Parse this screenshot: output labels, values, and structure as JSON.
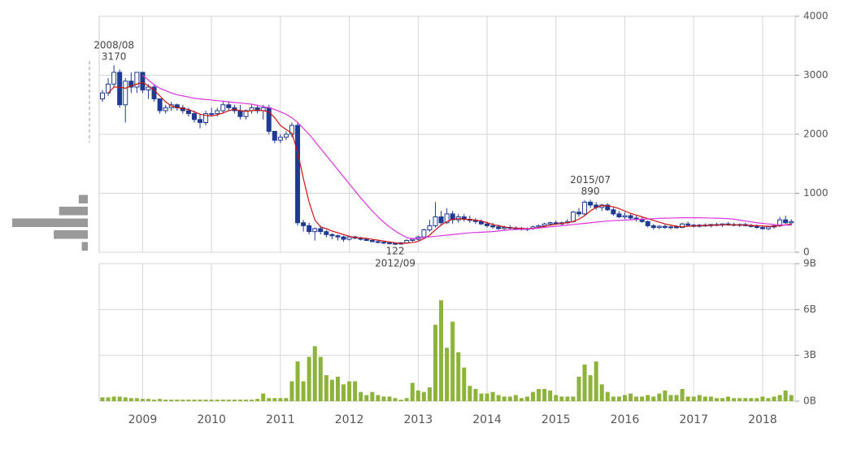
{
  "chart_data": {
    "type": "candlestick",
    "categories": [
      null,
      null,
      null,
      null,
      null,
      null,
      null,
      "2009",
      null,
      null,
      null,
      null,
      null,
      null,
      null,
      null,
      null,
      null,
      null,
      "2010",
      null,
      null,
      null,
      null,
      null,
      null,
      null,
      null,
      null,
      null,
      null,
      "2011",
      null,
      null,
      null,
      null,
      null,
      null,
      null,
      null,
      null,
      null,
      null,
      "2012",
      null,
      null,
      null,
      null,
      null,
      null,
      null,
      null,
      null,
      null,
      null,
      "2013",
      null,
      null,
      null,
      null,
      null,
      null,
      null,
      null,
      null,
      null,
      null,
      "2014",
      null,
      null,
      null,
      null,
      null,
      null,
      null,
      null,
      null,
      null,
      null,
      "2015",
      null,
      null,
      null,
      null,
      null,
      null,
      null,
      null,
      null,
      null,
      null,
      "2016",
      null,
      null,
      null,
      null,
      null,
      null,
      null,
      null,
      null,
      null,
      null,
      "2017",
      null,
      null,
      null,
      null,
      null,
      null,
      null,
      null,
      null,
      null,
      null,
      "2018",
      null,
      null,
      null,
      null,
      null
    ],
    "ohlc": [
      [
        2600,
        2750,
        2550,
        2700
      ],
      [
        2700,
        2950,
        2650,
        2850
      ],
      [
        2850,
        3170,
        2800,
        3050
      ],
      [
        3050,
        3100,
        2450,
        2500
      ],
      [
        2500,
        2950,
        2200,
        2900
      ],
      [
        2900,
        3050,
        2700,
        2800
      ],
      [
        2800,
        3050,
        2700,
        3050
      ],
      [
        3050,
        3050,
        2700,
        2750
      ],
      [
        2750,
        2850,
        2600,
        2800
      ],
      [
        2800,
        2850,
        2550,
        2600
      ],
      [
        2600,
        2600,
        2350,
        2400
      ],
      [
        2400,
        2500,
        2350,
        2450
      ],
      [
        2450,
        2550,
        2400,
        2500
      ],
      [
        2500,
        2520,
        2400,
        2450
      ],
      [
        2450,
        2500,
        2350,
        2400
      ],
      [
        2400,
        2450,
        2300,
        2350
      ],
      [
        2350,
        2400,
        2200,
        2250
      ],
      [
        2250,
        2350,
        2100,
        2200
      ],
      [
        2200,
        2400,
        2150,
        2350
      ],
      [
        2350,
        2450,
        2300,
        2350
      ],
      [
        2350,
        2450,
        2300,
        2400
      ],
      [
        2400,
        2550,
        2350,
        2500
      ],
      [
        2500,
        2550,
        2400,
        2450
      ],
      [
        2450,
        2500,
        2350,
        2400
      ],
      [
        2400,
        2500,
        2250,
        2300
      ],
      [
        2300,
        2420,
        2250,
        2400
      ],
      [
        2400,
        2500,
        2350,
        2450
      ],
      [
        2450,
        2500,
        2350,
        2400
      ],
      [
        2400,
        2500,
        2250,
        2450
      ],
      [
        2450,
        2500,
        2000,
        2050
      ],
      [
        2050,
        2050,
        1850,
        1900
      ],
      [
        1900,
        2000,
        1850,
        1950
      ],
      [
        1950,
        2050,
        1900,
        2000
      ],
      [
        2000,
        2200,
        1950,
        2150
      ],
      [
        2150,
        2200,
        450,
        500
      ],
      [
        500,
        550,
        350,
        450
      ],
      [
        450,
        500,
        300,
        350
      ],
      [
        350,
        420,
        200,
        400
      ],
      [
        400,
        450,
        300,
        350
      ],
      [
        350,
        380,
        250,
        300
      ],
      [
        300,
        320,
        220,
        280
      ],
      [
        280,
        300,
        200,
        260
      ],
      [
        260,
        280,
        180,
        220
      ],
      [
        220,
        280,
        200,
        260
      ],
      [
        260,
        280,
        220,
        240
      ],
      [
        240,
        260,
        200,
        220
      ],
      [
        220,
        240,
        190,
        200
      ],
      [
        200,
        220,
        170,
        180
      ],
      [
        180,
        200,
        150,
        170
      ],
      [
        170,
        190,
        140,
        160
      ],
      [
        160,
        180,
        130,
        150
      ],
      [
        150,
        160,
        122,
        140
      ],
      [
        140,
        170,
        130,
        160
      ],
      [
        160,
        220,
        150,
        200
      ],
      [
        200,
        240,
        180,
        220
      ],
      [
        220,
        280,
        200,
        260
      ],
      [
        260,
        400,
        250,
        380
      ],
      [
        380,
        550,
        350,
        450
      ],
      [
        450,
        850,
        420,
        600
      ],
      [
        600,
        700,
        450,
        500
      ],
      [
        500,
        750,
        480,
        650
      ],
      [
        650,
        700,
        480,
        550
      ],
      [
        550,
        650,
        500,
        600
      ],
      [
        600,
        650,
        520,
        560
      ],
      [
        560,
        620,
        500,
        540
      ],
      [
        540,
        580,
        480,
        520
      ],
      [
        520,
        560,
        460,
        480
      ],
      [
        480,
        520,
        420,
        450
      ],
      [
        450,
        500,
        400,
        430
      ],
      [
        430,
        470,
        380,
        400
      ],
      [
        400,
        450,
        380,
        420
      ],
      [
        420,
        460,
        390,
        410
      ],
      [
        410,
        440,
        380,
        400
      ],
      [
        400,
        430,
        370,
        390
      ],
      [
        390,
        420,
        360,
        400
      ],
      [
        400,
        450,
        380,
        430
      ],
      [
        430,
        470,
        400,
        450
      ],
      [
        450,
        500,
        430,
        480
      ],
      [
        480,
        520,
        450,
        500
      ],
      [
        500,
        540,
        470,
        480
      ],
      [
        480,
        520,
        460,
        500
      ],
      [
        500,
        560,
        480,
        520
      ],
      [
        520,
        700,
        500,
        680
      ],
      [
        680,
        750,
        600,
        650
      ],
      [
        650,
        880,
        630,
        850
      ],
      [
        850,
        890,
        750,
        800
      ],
      [
        800,
        850,
        720,
        760
      ],
      [
        760,
        820,
        700,
        800
      ],
      [
        800,
        830,
        700,
        720
      ],
      [
        720,
        760,
        620,
        650
      ],
      [
        650,
        700,
        580,
        600
      ],
      [
        600,
        680,
        560,
        620
      ],
      [
        620,
        650,
        550,
        580
      ],
      [
        580,
        620,
        520,
        560
      ],
      [
        560,
        600,
        500,
        520
      ],
      [
        520,
        540,
        420,
        450
      ],
      [
        450,
        480,
        380,
        420
      ],
      [
        420,
        460,
        390,
        440
      ],
      [
        440,
        470,
        400,
        420
      ],
      [
        420,
        450,
        390,
        430
      ],
      [
        430,
        460,
        400,
        420
      ],
      [
        420,
        500,
        410,
        480
      ],
      [
        480,
        520,
        440,
        460
      ],
      [
        460,
        480,
        420,
        440
      ],
      [
        440,
        480,
        420,
        460
      ],
      [
        460,
        490,
        430,
        450
      ],
      [
        450,
        480,
        420,
        470
      ],
      [
        470,
        500,
        440,
        460
      ],
      [
        460,
        490,
        430,
        480
      ],
      [
        480,
        510,
        450,
        470
      ],
      [
        470,
        500,
        440,
        460
      ],
      [
        460,
        490,
        430,
        470
      ],
      [
        470,
        500,
        440,
        450
      ],
      [
        450,
        480,
        420,
        440
      ],
      [
        440,
        470,
        400,
        420
      ],
      [
        420,
        450,
        380,
        400
      ],
      [
        400,
        440,
        370,
        430
      ],
      [
        430,
        470,
        400,
        450
      ],
      [
        450,
        600,
        430,
        550
      ],
      [
        550,
        620,
        480,
        500
      ],
      [
        500,
        560,
        450,
        520
      ]
    ],
    "colors": {
      "up": "#ffffff",
      "down": "#1f3a93",
      "edge": "#1f3a93"
    },
    "ylim": [
      0,
      4000
    ],
    "yticks": [
      0,
      1000,
      2000,
      3000,
      4000
    ],
    "grid": true,
    "moving_averages": [
      {
        "color": "#cc1111",
        "values": [
          null,
          2700,
          2800,
          2800,
          2780,
          2820,
          2850,
          2880,
          2820,
          2750,
          2650,
          2550,
          2480,
          2450,
          2440,
          2420,
          2380,
          2340,
          2320,
          2310,
          2330,
          2360,
          2400,
          2420,
          2400,
          2390,
          2400,
          2410,
          2400,
          2380,
          2280,
          2150,
          2080,
          2020,
          1700,
          1250,
          850,
          550,
          430,
          400,
          360,
          330,
          300,
          270,
          250,
          245,
          235,
          220,
          205,
          190,
          175,
          160,
          150,
          155,
          165,
          185,
          230,
          290,
          380,
          460,
          520,
          560,
          570,
          560,
          555,
          545,
          530,
          500,
          470,
          450,
          430,
          415,
          410,
          405,
          400,
          405,
          420,
          440,
          460,
          475,
          490,
          500,
          520,
          560,
          620,
          700,
          760,
          790,
          790,
          770,
          740,
          700,
          660,
          630,
          600,
          570,
          540,
          510,
          480,
          460,
          440,
          430,
          440,
          445,
          450,
          455,
          460,
          460,
          465,
          465,
          465,
          465,
          460,
          455,
          450,
          445,
          440,
          440,
          450,
          465,
          480
        ]
      },
      {
        "color": "#dd33dd",
        "values": [
          null,
          null,
          null,
          null,
          null,
          null,
          null,
          3000,
          2920,
          2840,
          2780,
          2740,
          2700,
          2670,
          2650,
          2630,
          2610,
          2600,
          2590,
          2580,
          2570,
          2560,
          2550,
          2540,
          2530,
          2520,
          2510,
          2490,
          2470,
          2450,
          2420,
          2380,
          2340,
          2280,
          2200,
          2100,
          2000,
          1880,
          1760,
          1640,
          1520,
          1400,
          1280,
          1160,
          1040,
          920,
          810,
          700,
          600,
          510,
          430,
          360,
          300,
          250,
          230,
          240,
          250,
          260,
          270,
          280,
          290,
          300,
          310,
          320,
          330,
          335,
          340,
          345,
          350,
          360,
          370,
          380,
          385,
          390,
          395,
          400,
          410,
          420,
          430,
          440,
          450,
          460,
          470,
          480,
          490,
          500,
          510,
          520,
          530,
          535,
          540,
          545,
          550,
          555,
          560,
          565,
          570,
          575,
          578,
          580,
          582,
          584,
          585,
          585,
          584,
          582,
          580,
          578,
          575,
          570,
          560,
          545,
          530,
          515,
          500,
          490,
          480,
          470,
          465,
          460,
          460
        ]
      }
    ],
    "annotations": [
      {
        "date": "2008/08",
        "value": 3170,
        "kind": "high"
      },
      {
        "date": "2015/07",
        "value": 890,
        "kind": "high"
      },
      {
        "date": "2012/09",
        "value": 122,
        "kind": "low"
      }
    ],
    "volume": {
      "type": "bar",
      "color": "#8db33a",
      "values": [
        0.25,
        0.25,
        0.3,
        0.3,
        0.25,
        0.2,
        0.2,
        0.15,
        0.15,
        0.1,
        0.15,
        0.1,
        0.1,
        0.1,
        0.1,
        0.1,
        0.1,
        0.1,
        0.1,
        0.1,
        0.1,
        0.1,
        0.1,
        0.1,
        0.1,
        0.1,
        0.1,
        0.15,
        0.5,
        0.2,
        0.2,
        0.2,
        0.2,
        1.3,
        2.6,
        1.3,
        2.9,
        3.6,
        2.9,
        1.7,
        1.4,
        1.6,
        1.1,
        1.3,
        1.3,
        0.6,
        0.4,
        0.6,
        0.4,
        0.3,
        0.3,
        0.2,
        0.1,
        0.2,
        1.2,
        0.7,
        0.6,
        0.9,
        5.0,
        6.6,
        3.5,
        5.2,
        3.2,
        2.2,
        1.0,
        0.8,
        0.5,
        0.5,
        0.6,
        0.4,
        0.3,
        0.3,
        0.4,
        0.2,
        0.3,
        0.6,
        0.8,
        0.8,
        0.7,
        0.4,
        0.3,
        0.3,
        0.3,
        1.6,
        2.4,
        1.7,
        2.6,
        1.1,
        0.6,
        0.3,
        0.3,
        0.4,
        0.5,
        0.3,
        0.3,
        0.4,
        0.3,
        0.5,
        0.7,
        0.4,
        0.4,
        0.8,
        0.3,
        0.3,
        0.4,
        0.3,
        0.3,
        0.2,
        0.2,
        0.3,
        0.2,
        0.2,
        0.2,
        0.2,
        0.2,
        0.3,
        0.2,
        0.3,
        0.4,
        0.7,
        0.4
      ],
      "ylim": [
        0,
        9
      ],
      "yticks": [
        {
          "value": 0,
          "label": "0B"
        },
        {
          "value": 3,
          "label": "3B"
        },
        {
          "value": 6,
          "label": "6B"
        },
        {
          "value": 9,
          "label": "9B"
        }
      ]
    },
    "volume_profile": {
      "color": "#999999",
      "bins": [
        0,
        200,
        400,
        600,
        800,
        1000
      ],
      "values": [
        8,
        45,
        100,
        38,
        12
      ],
      "xlim": [
        0,
        100
      ]
    }
  }
}
